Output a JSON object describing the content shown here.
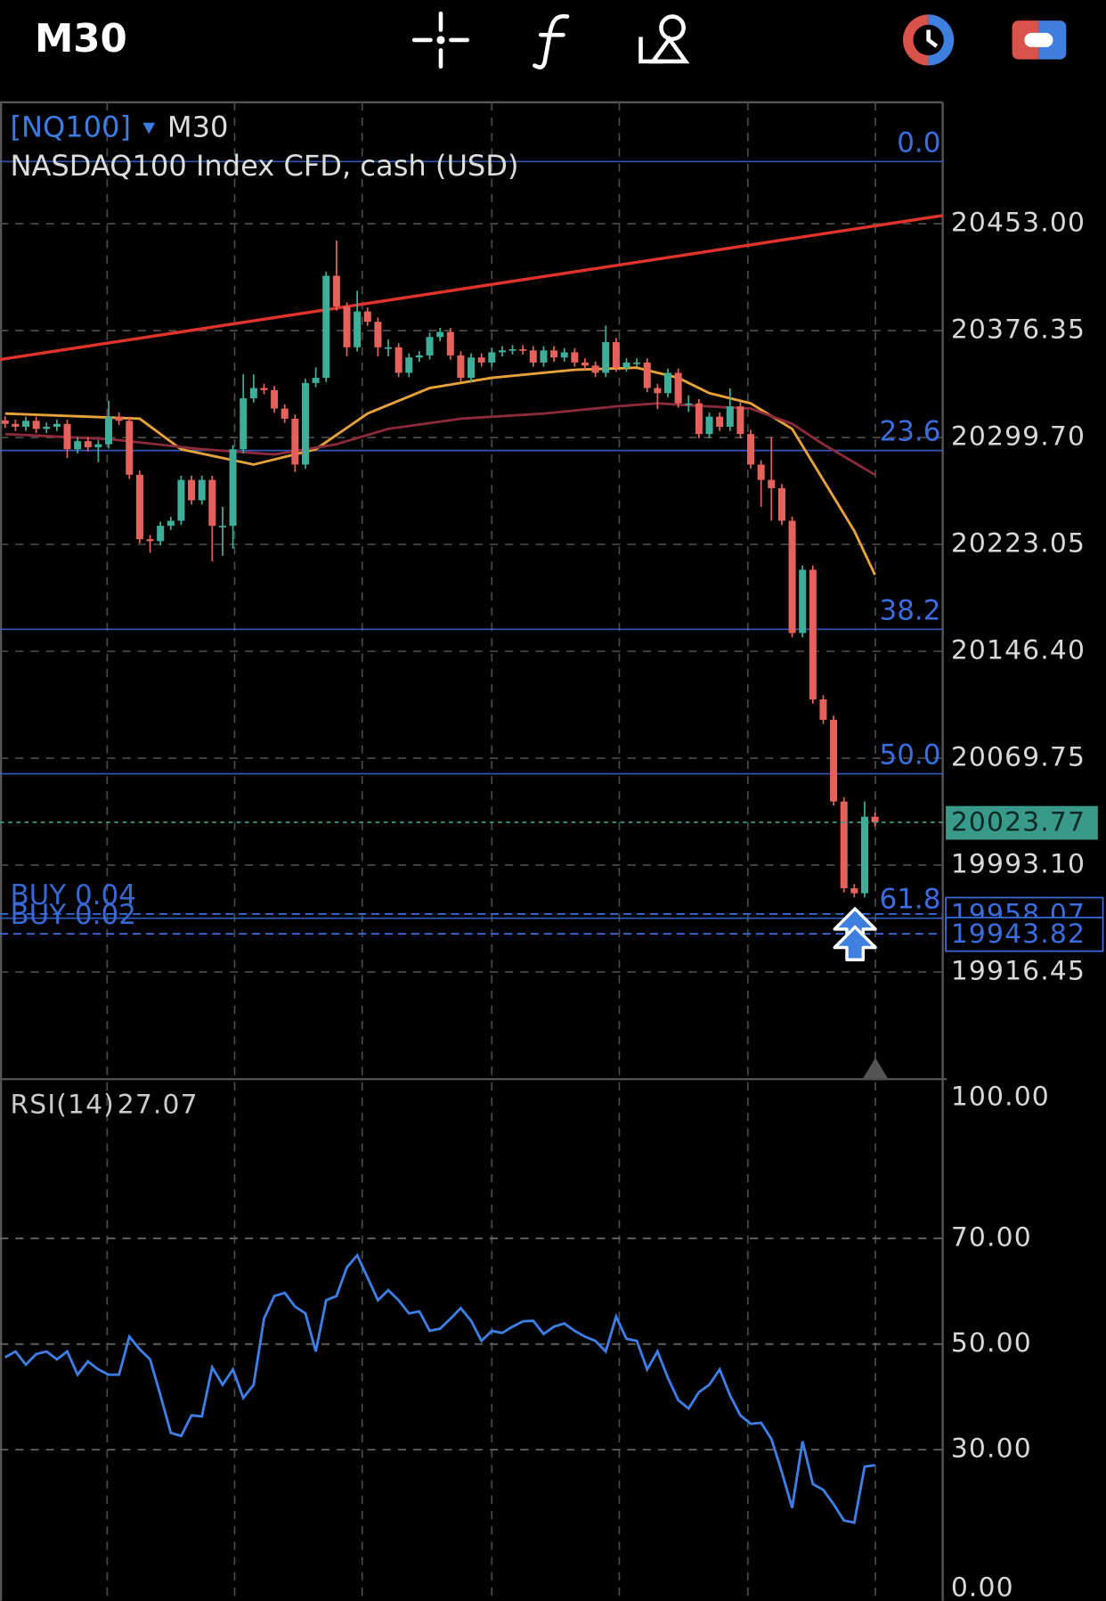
{
  "header": {
    "timeframe": "M30"
  },
  "chart_data": [
    {
      "type": "candlestick",
      "symbol": "[NQ100]",
      "description": "NASDAQ100 Index CFD, cash (USD)",
      "ylim": [
        19841.05,
        20540.1
      ],
      "yticks": [
        {
          "value": 19916.45,
          "label": "19916.45"
        },
        {
          "value": 19993.1,
          "label": "19993.10"
        },
        {
          "value": 20069.75,
          "label": "20069.75"
        },
        {
          "value": 20146.4,
          "label": "20146.40"
        },
        {
          "value": 20223.05,
          "label": "20223.05"
        },
        {
          "value": 20299.7,
          "label": "20299.70"
        },
        {
          "value": 20376.35,
          "label": "20376.35"
        },
        {
          "value": 20453,
          "label": "20453.00"
        }
      ],
      "grid": true,
      "up_color": "#3fae98",
      "down_color": "#e5625c",
      "candles": [
        [
          20312.0,
          20315.0,
          20306.5,
          20309.5
        ],
        [
          20309.5,
          20312.5,
          20304.4,
          20307.4
        ],
        [
          20307.4,
          20314.7,
          20304.4,
          20311.7
        ],
        [
          20311.7,
          20314.7,
          20302.9,
          20305.9
        ],
        [
          20305.9,
          20310.4,
          20302.9,
          20307.4
        ],
        [
          20307.4,
          20312.5,
          20304.4,
          20309.5
        ],
        [
          20309.5,
          20312.5,
          20285.0,
          20291.3
        ],
        [
          20291.3,
          20300.1,
          20288.3,
          20297.1
        ],
        [
          20297.1,
          20300.1,
          20289.7,
          20292.7
        ],
        [
          20292.7,
          20297.9,
          20282.0,
          20294.9
        ],
        [
          20294.9,
          20326.0,
          20291.9,
          20314.7
        ],
        [
          20314.7,
          20317.7,
          20308.7,
          20311.7
        ],
        [
          20311.7,
          20314.7,
          20270.0,
          20273.0
        ],
        [
          20273.0,
          20276.0,
          20223.8,
          20226.8
        ],
        [
          20226.8,
          20229.8,
          20217.0,
          20225.4
        ],
        [
          20225.4,
          20239.4,
          20222.4,
          20236.4
        ],
        [
          20236.4,
          20243.0,
          20233.4,
          20240.0
        ],
        [
          20240.0,
          20272.3,
          20237.0,
          20269.3
        ],
        [
          20269.3,
          20272.3,
          20251.7,
          20254.7
        ],
        [
          20254.7,
          20272.3,
          20251.7,
          20269.3
        ],
        [
          20269.3,
          20272.3,
          20211.0,
          20236.4
        ],
        [
          20236.4,
          20250.0,
          20215.0,
          20236.4
        ],
        [
          20236.4,
          20294.3,
          20220.0,
          20291.3
        ],
        [
          20291.3,
          20345.0,
          20288.3,
          20327.8
        ],
        [
          20327.8,
          20345.0,
          20324.8,
          20335.2
        ],
        [
          20335.2,
          20338.2,
          20330.7,
          20333.7
        ],
        [
          20333.7,
          20336.7,
          20317.5,
          20320.5
        ],
        [
          20320.5,
          20323.5,
          20310.2,
          20313.2
        ],
        [
          20313.2,
          20316.2,
          20275.0,
          20280.3
        ],
        [
          20280.3,
          20341.8,
          20277.3,
          20338.8
        ],
        [
          20338.8,
          20350.0,
          20335.8,
          20342.5
        ],
        [
          20342.5,
          20418.7,
          20339.5,
          20415.7
        ],
        [
          20415.7,
          20441.0,
          20390.7,
          20393.7
        ],
        [
          20393.7,
          20396.7,
          20358.0,
          20364.4
        ],
        [
          20364.4,
          20405.0,
          20361.4,
          20390.1
        ],
        [
          20390.1,
          20393.1,
          20379.7,
          20382.7
        ],
        [
          20382.7,
          20385.7,
          20358.0,
          20364.4
        ],
        [
          20364.4,
          20370.0,
          20358.0,
          20364.4
        ],
        [
          20364.4,
          20367.4,
          20343.1,
          20346.1
        ],
        [
          20346.1,
          20360.1,
          20343.1,
          20357.1
        ],
        [
          20357.1,
          20361.6,
          20354.1,
          20358.6
        ],
        [
          20358.6,
          20374.8,
          20355.6,
          20371.8
        ],
        [
          20371.8,
          20378.4,
          20368.8,
          20375.4
        ],
        [
          20375.4,
          20378.4,
          20355.6,
          20358.6
        ],
        [
          20358.6,
          20361.6,
          20339.5,
          20342.5
        ],
        [
          20342.5,
          20360.1,
          20339.5,
          20357.1
        ],
        [
          20357.1,
          20360.1,
          20350.5,
          20353.5
        ],
        [
          20353.5,
          20363.8,
          20350.5,
          20360.8
        ],
        [
          20360.8,
          20365.2,
          20357.8,
          20362.2
        ],
        [
          20362.2,
          20366.0,
          20359.2,
          20363.0
        ],
        [
          20363.0,
          20366.0,
          20359.2,
          20362.2
        ],
        [
          20362.2,
          20365.2,
          20350.5,
          20353.5
        ],
        [
          20353.5,
          20365.2,
          20350.5,
          20362.2
        ],
        [
          20362.2,
          20365.2,
          20354.1,
          20357.1
        ],
        [
          20357.1,
          20363.8,
          20354.1,
          20360.8
        ],
        [
          20360.8,
          20363.8,
          20350.5,
          20353.5
        ],
        [
          20353.5,
          20356.5,
          20348.3,
          20351.3
        ],
        [
          20351.3,
          20354.3,
          20343.1,
          20346.1
        ],
        [
          20346.1,
          20380.0,
          20343.1,
          20368.1
        ],
        [
          20368.1,
          20371.1,
          20346.8,
          20349.8
        ],
        [
          20349.8,
          20356.5,
          20346.8,
          20353.5
        ],
        [
          20353.5,
          20356.5,
          20350.5,
          20353.5
        ],
        [
          20353.5,
          20356.5,
          20332.2,
          20335.2
        ],
        [
          20335.2,
          20338.2,
          20320.0,
          20331.5
        ],
        [
          20331.5,
          20349.1,
          20328.5,
          20346.1
        ],
        [
          20346.1,
          20349.1,
          20321.2,
          20324.2
        ],
        [
          20324.2,
          20330.0,
          20318.0,
          20324.2
        ],
        [
          20324.2,
          20327.2,
          20299.2,
          20302.2
        ],
        [
          20302.2,
          20317.7,
          20299.2,
          20314.7
        ],
        [
          20314.7,
          20317.7,
          20304.4,
          20307.4
        ],
        [
          20307.4,
          20335.0,
          20304.4,
          20322.0
        ],
        [
          20322.0,
          20325.0,
          20299.2,
          20302.2
        ],
        [
          20302.2,
          20305.2,
          20277.3,
          20280.3
        ],
        [
          20280.3,
          20283.3,
          20250.0,
          20269.3
        ],
        [
          20269.3,
          20300.0,
          20240.0,
          20263.4
        ],
        [
          20263.4,
          20266.4,
          20237.0,
          20240.0
        ],
        [
          20240.0,
          20243.0,
          20156.5,
          20159.5
        ],
        [
          20159.5,
          20207.9,
          20156.5,
          20204.9
        ],
        [
          20204.9,
          20207.9,
          20108.9,
          20111.9
        ],
        [
          20111.9,
          20114.9,
          20094.3,
          20097.3
        ],
        [
          20097.3,
          20100.3,
          20035.7,
          20038.7
        ],
        [
          20038.7,
          20041.7,
          19973.5,
          19976.5
        ],
        [
          19976.5,
          19979.5,
          19969.9,
          19972.9
        ],
        [
          19972.9,
          20038.7,
          19969.9,
          20027.8
        ],
        [
          20027.8,
          20030.8,
          20020.8,
          20023.77
        ]
      ],
      "current_price_color": "#3a9a8a",
      "moving_averages": [
        {
          "color": "#e8a23a",
          "x": [
            0,
            13,
            17,
            24,
            30,
            35,
            41,
            47,
            55,
            61,
            65,
            68,
            72,
            76,
            79,
            82,
            84
          ],
          "values": [
            20316.9,
            20313.2,
            20291.3,
            20280.3,
            20291.3,
            20316.9,
            20335.2,
            20342.5,
            20348.3,
            20349.8,
            20342.5,
            20331.5,
            20324.2,
            20305.9,
            20269.3,
            20232.7,
            20201.2
          ]
        },
        {
          "color": "#8a2a3a",
          "x": [
            0,
            10,
            19,
            26,
            32,
            37,
            44,
            52,
            59,
            63,
            68,
            72,
            76,
            79,
            84
          ],
          "values": [
            20302.2,
            20298.6,
            20291.3,
            20287.6,
            20294.9,
            20305.9,
            20313.2,
            20316.9,
            20322.0,
            20324.2,
            20322.0,
            20320.5,
            20309.5,
            20294.9,
            20273.0
          ]
        }
      ],
      "trendline": {
        "color": "#e0332c",
        "start": 20355.6,
        "end": 20458.9
      },
      "fib_color": "#3a6ee0",
      "fib_levels": [
        {
          "label": "0.0",
          "price": 20497.6
        },
        {
          "label": "23.6",
          "price": 20290.4
        },
        {
          "label": "38.2",
          "price": 20162.2
        },
        {
          "label": "50.0",
          "price": 20058.6
        },
        {
          "label": "61.8",
          "price": 19955.0
        }
      ],
      "orders": [
        {
          "label": "BUY 0.04",
          "price": 19958.07
        },
        {
          "label": "BUY 0.02",
          "price": 19943.82
        }
      ]
    },
    {
      "type": "line",
      "name": "RSI(14)",
      "color": "#3d7fe6",
      "ylim": [
        0,
        100
      ],
      "yticks": [
        {
          "value": 0,
          "label": "0.00"
        },
        {
          "value": 30,
          "label": "30.00"
        },
        {
          "value": 50,
          "label": "50.00"
        },
        {
          "value": 70,
          "label": "70.00"
        },
        {
          "value": 100,
          "label": "100.00"
        }
      ],
      "values": [
        47.5,
        48.6,
        46.1,
        48.1,
        48.6,
        47.1,
        48.6,
        44.2,
        46.7,
        45.2,
        44.2,
        44.2,
        51.4,
        49.0,
        47.1,
        40.3,
        33.2,
        32.6,
        36.5,
        36.3,
        45.6,
        42.3,
        45.2,
        39.8,
        42.3,
        54.8,
        59.1,
        59.7,
        57.1,
        55.8,
        48.6,
        58.3,
        59.1,
        64.5,
        66.8,
        62.6,
        58.3,
        60.2,
        58.3,
        55.8,
        56.2,
        52.5,
        52.9,
        54.8,
        56.8,
        54.4,
        50.6,
        52.5,
        52.1,
        53.3,
        54.3,
        54.4,
        51.9,
        53.3,
        53.9,
        52.5,
        51.4,
        50.6,
        48.6,
        55.2,
        51.0,
        50.6,
        45.2,
        48.6,
        43.6,
        39.4,
        37.8,
        40.9,
        42.3,
        45.2,
        40.3,
        36.5,
        34.9,
        35.1,
        32.0,
        25.8,
        19.0,
        31.6,
        23.5,
        22.4,
        19.7,
        16.6,
        16.2,
        26.8,
        27.07
      ]
    }
  ]
}
